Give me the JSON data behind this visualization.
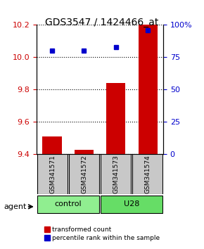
{
  "title": "GDS3547 / 1424466_at",
  "samples": [
    "GSM341571",
    "GSM341572",
    "GSM341573",
    "GSM341574"
  ],
  "groups": [
    "control",
    "control",
    "U28",
    "U28"
  ],
  "group_labels": [
    "control",
    "U28"
  ],
  "group_colors": [
    "#90EE90",
    "#66DD66"
  ],
  "red_values": [
    9.51,
    9.43,
    9.84,
    10.2
  ],
  "blue_values": [
    80,
    80,
    83,
    96
  ],
  "ylim_left": [
    9.4,
    10.2
  ],
  "ylim_right": [
    0,
    100
  ],
  "yticks_left": [
    9.4,
    9.6,
    9.8,
    10.0,
    10.2
  ],
  "yticks_right": [
    0,
    25,
    50,
    75,
    100
  ],
  "ytick_labels_right": [
    "0",
    "25",
    "50",
    "75",
    "100%"
  ],
  "bar_color": "#CC0000",
  "dot_color": "#0000CC",
  "grid_color": "#000000",
  "left_tick_color": "#CC0000",
  "right_tick_color": "#0000CC",
  "legend_red": "transformed count",
  "legend_blue": "percentile rank within the sample",
  "agent_label": "agent",
  "bar_width": 0.6
}
